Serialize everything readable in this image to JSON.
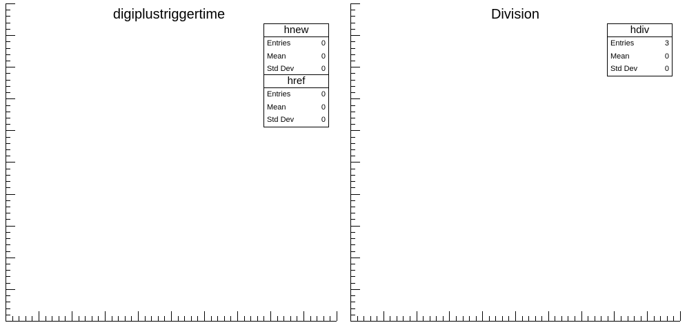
{
  "chart_data": [
    {
      "type": "bar",
      "title": "digiplustriggertime",
      "xlabel": "",
      "ylabel": "",
      "categories": [],
      "series": [],
      "grid": false,
      "stat_boxes": [
        {
          "name": "hnew",
          "rows": [
            {
              "label": "Entries",
              "value": "0"
            },
            {
              "label": "Mean",
              "value": "0"
            },
            {
              "label": "Std Dev",
              "value": "0"
            }
          ]
        },
        {
          "name": "href",
          "rows": [
            {
              "label": "Entries",
              "value": "0"
            },
            {
              "label": "Mean",
              "value": "0"
            },
            {
              "label": "Std Dev",
              "value": "0"
            }
          ]
        }
      ]
    },
    {
      "type": "bar",
      "title": "Division",
      "xlabel": "",
      "ylabel": "",
      "categories": [],
      "series": [],
      "grid": false,
      "stat_boxes": [
        {
          "name": "hdiv",
          "rows": [
            {
              "label": "Entries",
              "value": "3"
            },
            {
              "label": "Mean",
              "value": "0"
            },
            {
              "label": "Std Dev",
              "value": "0"
            }
          ]
        }
      ]
    }
  ]
}
